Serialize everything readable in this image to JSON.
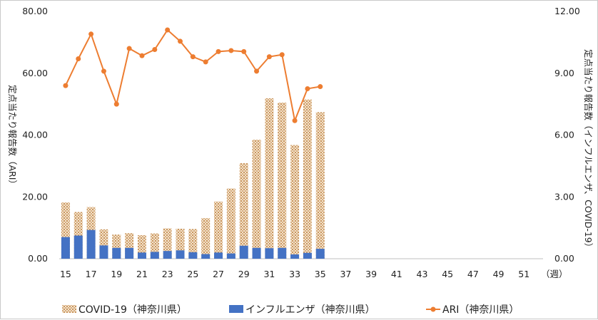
{
  "chart_data": {
    "type": "bar",
    "x_categories": [
      "15",
      "16",
      "17",
      "18",
      "19",
      "20",
      "21",
      "22",
      "23",
      "24",
      "25",
      "26",
      "27",
      "28",
      "29",
      "30",
      "31",
      "32",
      "33",
      "34",
      "35",
      "36",
      "37",
      "38",
      "39",
      "40",
      "41",
      "42",
      "43",
      "44",
      "45",
      "46",
      "47",
      "48",
      "49",
      "50",
      "51",
      "52"
    ],
    "x_tick_labels": [
      "15",
      "17",
      "19",
      "21",
      "23",
      "25",
      "27",
      "29",
      "31",
      "33",
      "35",
      "37",
      "39",
      "41",
      "43",
      "45",
      "47",
      "49",
      "51"
    ],
    "x_unit": "（週）",
    "y_left": {
      "label": "定点当たり報告数（ARI）",
      "range": [
        0,
        80
      ],
      "ticks": [
        "0.00",
        "20.00",
        "40.00",
        "60.00",
        "80.00"
      ]
    },
    "y_right": {
      "label": "定点当たり報告数（インフルエンザ、COVID-19）",
      "range": [
        0,
        12
      ],
      "ticks": [
        "0.00",
        "3.00",
        "6.00",
        "9.00",
        "12.00"
      ]
    },
    "series": [
      {
        "name": "COVID-19（神奈川県）",
        "kind": "bar",
        "axis": "left",
        "color": "#d8b48a",
        "values": [
          18.2,
          15.1,
          16.7,
          9.5,
          7.8,
          8.3,
          7.6,
          8.2,
          9.8,
          9.7,
          9.6,
          13.1,
          18.5,
          22.7,
          30.9,
          38.5,
          51.9,
          50.5,
          36.8,
          51.5,
          47.4
        ]
      },
      {
        "name": "インフルエンザ（神奈川県）",
        "kind": "bar",
        "axis": "left",
        "color": "#4472c4",
        "values": [
          7.0,
          7.5,
          9.3,
          4.3,
          3.5,
          3.5,
          2.0,
          2.2,
          2.5,
          2.7,
          2.1,
          1.5,
          2.0,
          1.7,
          4.2,
          3.5,
          3.4,
          3.5,
          1.4,
          1.9,
          3.2
        ]
      },
      {
        "name": "ARI（神奈川県）",
        "kind": "line",
        "axis": "right",
        "color": "#ed7d31",
        "values": [
          8.4,
          9.7,
          10.9,
          9.1,
          7.5,
          10.2,
          9.85,
          10.15,
          11.1,
          10.55,
          9.8,
          9.55,
          10.05,
          10.1,
          10.05,
          9.1,
          9.8,
          9.9,
          6.7,
          8.25,
          8.35
        ]
      }
    ]
  }
}
